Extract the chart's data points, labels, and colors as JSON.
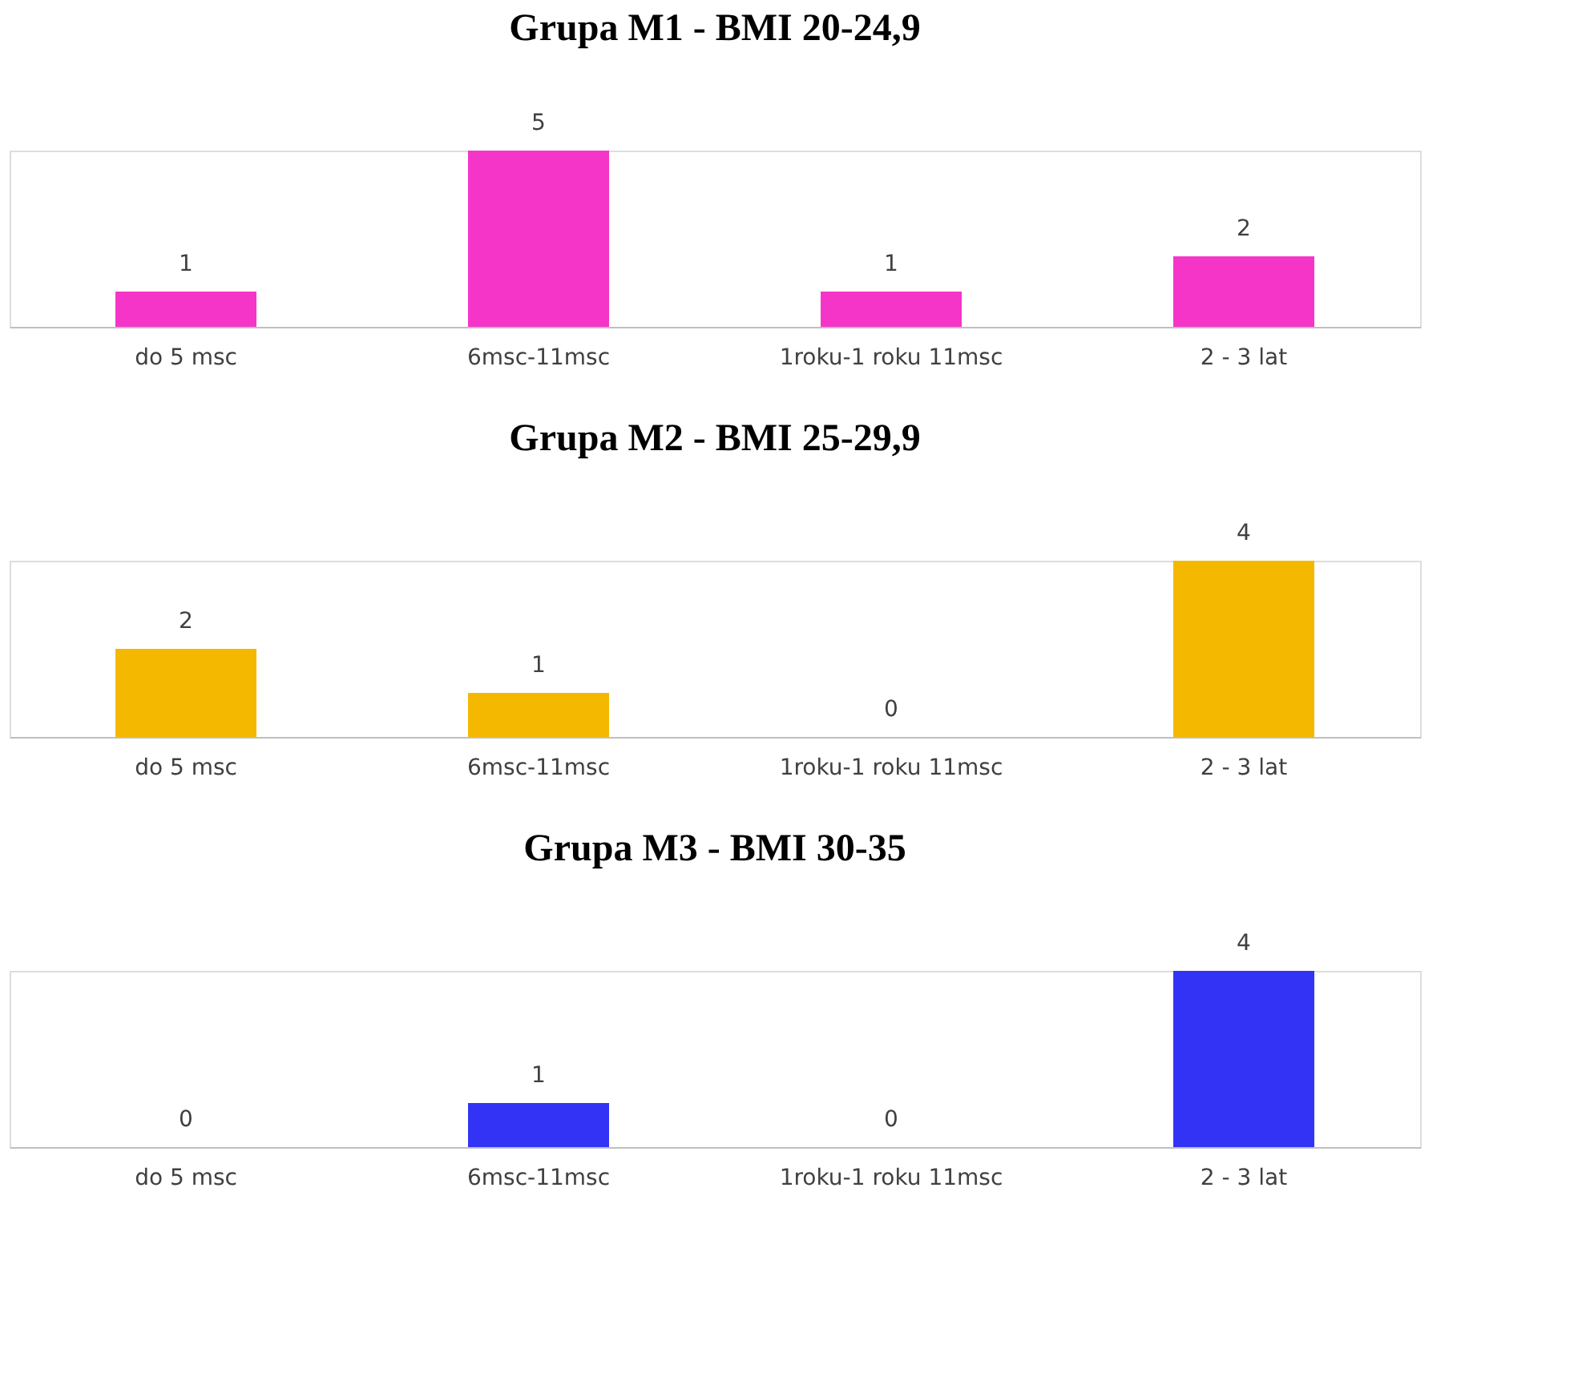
{
  "chart_data": [
    {
      "type": "bar",
      "title": "Grupa  M1 - BMI 20-24,9",
      "categories": [
        "do 5 msc",
        "6msc-11msc",
        "1roku-1 roku 11msc",
        "2 - 3 lat"
      ],
      "values": [
        1,
        5,
        1,
        2
      ],
      "color": "#f535c8",
      "data_labels": true
    },
    {
      "type": "bar",
      "title": "Grupa  M2 - BMI 25-29,9",
      "categories": [
        "do 5 msc",
        "6msc-11msc",
        "1roku-1 roku 11msc",
        "2 - 3 lat"
      ],
      "values": [
        2,
        1,
        0,
        4
      ],
      "color": "#f5b800",
      "data_labels": true
    },
    {
      "type": "bar",
      "title": "Grupa  M3 - BMI 30-35",
      "categories": [
        "do 5 msc",
        "6msc-11msc",
        "1roku-1 roku 11msc",
        "2 - 3 lat"
      ],
      "values": [
        0,
        1,
        0,
        4
      ],
      "color": "#3333f5",
      "data_labels": true
    }
  ]
}
